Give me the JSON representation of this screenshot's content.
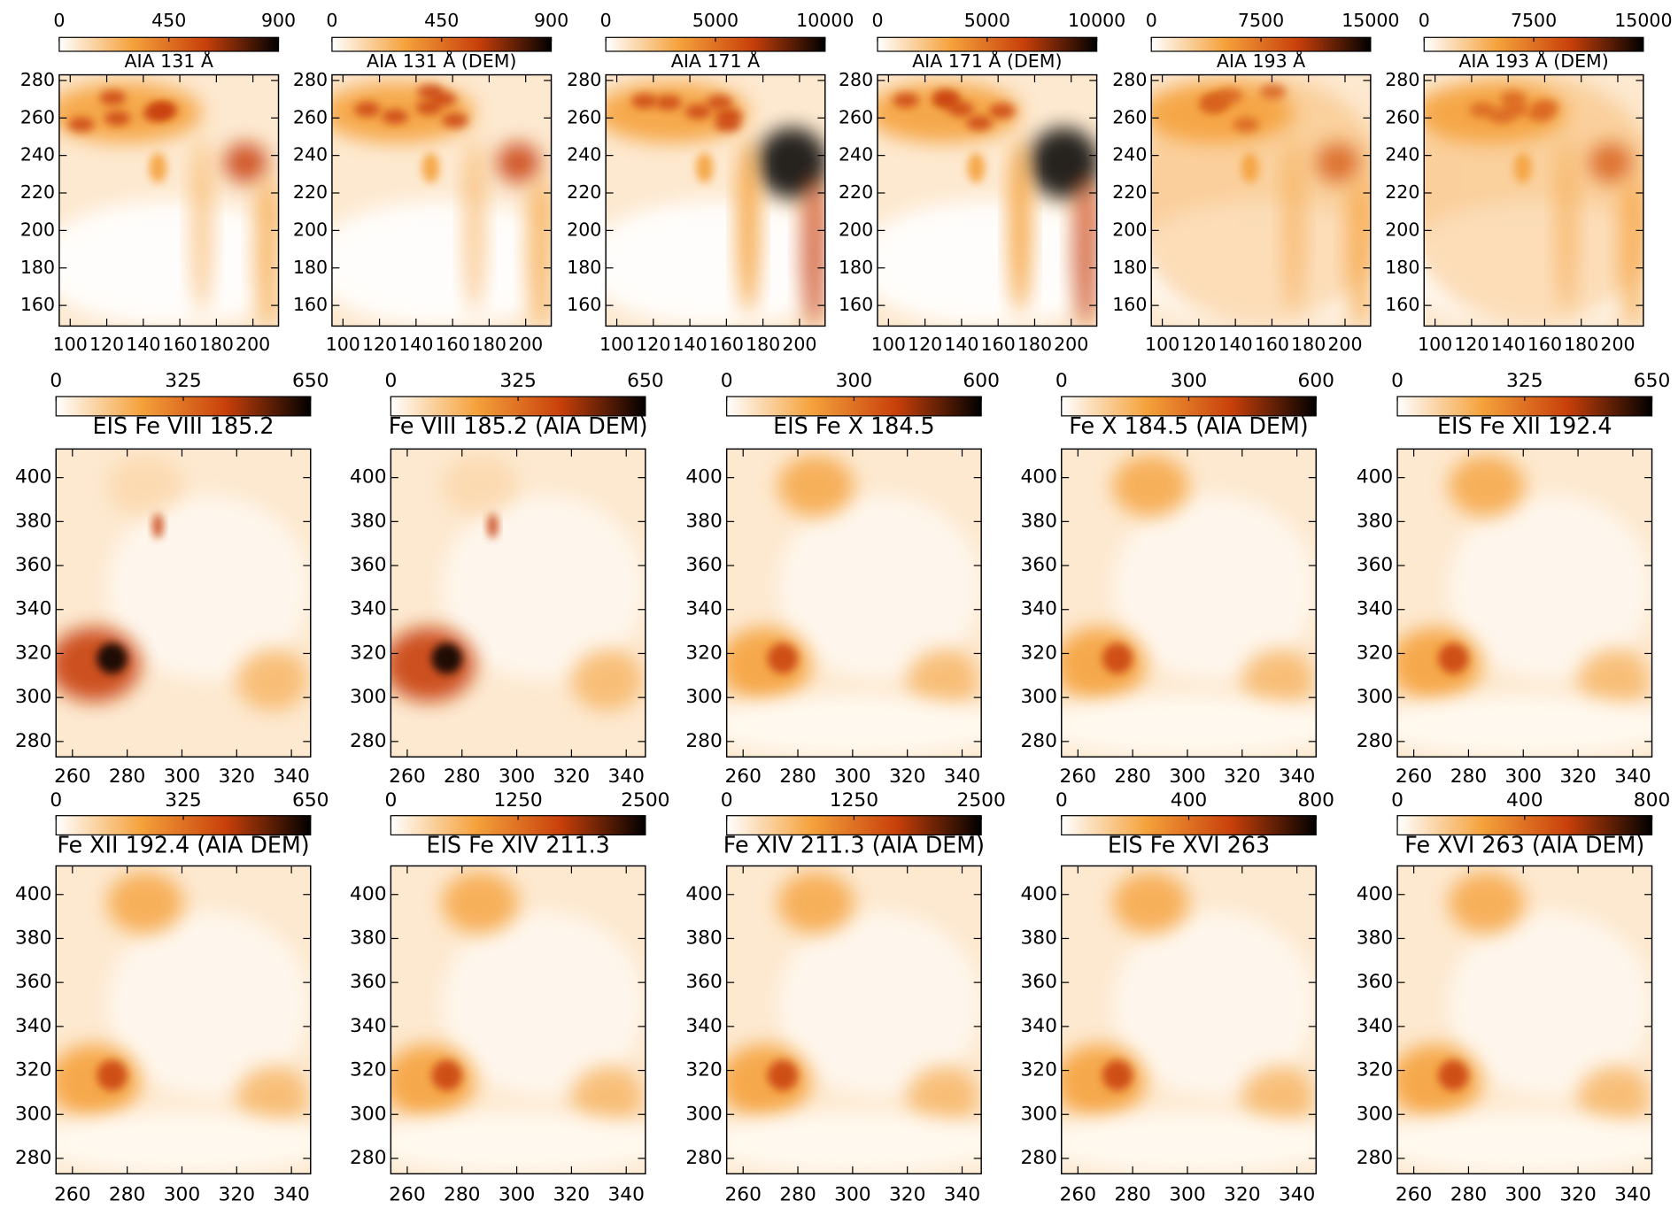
{
  "chart_data": [
    {
      "type": "image",
      "title": "AIA 131 Å",
      "colormap": [
        "#ffffff",
        "#f5a23c",
        "#c8400a",
        "#000000"
      ],
      "colorbar_lim": [
        0,
        900
      ],
      "colorbar_ticks": [
        0,
        450,
        900
      ],
      "xlim": [
        94,
        214
      ],
      "xticks": [
        100,
        120,
        140,
        160,
        180,
        200
      ],
      "ylim": [
        149,
        283
      ],
      "yticks": [
        160,
        180,
        200,
        220,
        240,
        260,
        280
      ]
    },
    {
      "type": "image",
      "title": "AIA 131 Å (DEM)",
      "colormap": [
        "#ffffff",
        "#f5a23c",
        "#c8400a",
        "#000000"
      ],
      "colorbar_lim": [
        0,
        900
      ],
      "colorbar_ticks": [
        0,
        450,
        900
      ],
      "xlim": [
        94,
        214
      ],
      "xticks": [
        100,
        120,
        140,
        160,
        180,
        200
      ],
      "ylim": [
        149,
        283
      ],
      "yticks": [
        160,
        180,
        200,
        220,
        240,
        260,
        280
      ]
    },
    {
      "type": "image",
      "title": "AIA 171 Å",
      "colormap": [
        "#ffffff",
        "#f5a23c",
        "#c8400a",
        "#000000"
      ],
      "colorbar_lim": [
        0,
        10000
      ],
      "colorbar_ticks": [
        0,
        5000,
        10000
      ],
      "xlim": [
        94,
        214
      ],
      "xticks": [
        100,
        120,
        140,
        160,
        180,
        200
      ],
      "ylim": [
        149,
        283
      ],
      "yticks": [
        160,
        180,
        200,
        220,
        240,
        260,
        280
      ]
    },
    {
      "type": "image",
      "title": "AIA 171 Å (DEM)",
      "colormap": [
        "#ffffff",
        "#f5a23c",
        "#c8400a",
        "#000000"
      ],
      "colorbar_lim": [
        0,
        10000
      ],
      "colorbar_ticks": [
        0,
        5000,
        10000
      ],
      "xlim": [
        94,
        214
      ],
      "xticks": [
        100,
        120,
        140,
        160,
        180,
        200
      ],
      "ylim": [
        149,
        283
      ],
      "yticks": [
        160,
        180,
        200,
        220,
        240,
        260,
        280
      ]
    },
    {
      "type": "image",
      "title": "AIA 193 Å",
      "colormap": [
        "#ffffff",
        "#f5a23c",
        "#c8400a",
        "#000000"
      ],
      "colorbar_lim": [
        0,
        15000
      ],
      "colorbar_ticks": [
        0,
        7500,
        15000
      ],
      "xlim": [
        94,
        214
      ],
      "xticks": [
        100,
        120,
        140,
        160,
        180,
        200
      ],
      "ylim": [
        149,
        283
      ],
      "yticks": [
        160,
        180,
        200,
        220,
        240,
        260,
        280
      ]
    },
    {
      "type": "image",
      "title": "AIA 193 Å (DEM)",
      "colormap": [
        "#ffffff",
        "#f5a23c",
        "#c8400a",
        "#000000"
      ],
      "colorbar_lim": [
        0,
        15000
      ],
      "colorbar_ticks": [
        0,
        7500,
        15000
      ],
      "xlim": [
        94,
        214
      ],
      "xticks": [
        100,
        120,
        140,
        160,
        180,
        200
      ],
      "ylim": [
        149,
        283
      ],
      "yticks": [
        160,
        180,
        200,
        220,
        240,
        260,
        280
      ]
    },
    {
      "type": "image",
      "title": "EIS Fe VIII 185.2",
      "colormap": [
        "#ffffff",
        "#f5a23c",
        "#c8400a",
        "#000000"
      ],
      "colorbar_lim": [
        0,
        650
      ],
      "colorbar_ticks": [
        0,
        325,
        650
      ],
      "xlim": [
        254,
        347
      ],
      "xticks": [
        260,
        280,
        300,
        320,
        340
      ],
      "ylim": [
        273,
        413
      ],
      "yticks": [
        280,
        300,
        320,
        340,
        360,
        380,
        400
      ]
    },
    {
      "type": "image",
      "title": "Fe VIII 185.2 (AIA DEM)",
      "colormap": [
        "#ffffff",
        "#f5a23c",
        "#c8400a",
        "#000000"
      ],
      "colorbar_lim": [
        0,
        650
      ],
      "colorbar_ticks": [
        0,
        325,
        650
      ],
      "xlim": [
        254,
        347
      ],
      "xticks": [
        260,
        280,
        300,
        320,
        340
      ],
      "ylim": [
        273,
        413
      ],
      "yticks": [
        280,
        300,
        320,
        340,
        360,
        380,
        400
      ]
    },
    {
      "type": "image",
      "title": "EIS Fe X 184.5",
      "colormap": [
        "#ffffff",
        "#f5a23c",
        "#c8400a",
        "#000000"
      ],
      "colorbar_lim": [
        0,
        600
      ],
      "colorbar_ticks": [
        0,
        300,
        600
      ],
      "xlim": [
        254,
        347
      ],
      "xticks": [
        260,
        280,
        300,
        320,
        340
      ],
      "ylim": [
        273,
        413
      ],
      "yticks": [
        280,
        300,
        320,
        340,
        360,
        380,
        400
      ]
    },
    {
      "type": "image",
      "title": "Fe X 184.5 (AIA DEM)",
      "colormap": [
        "#ffffff",
        "#f5a23c",
        "#c8400a",
        "#000000"
      ],
      "colorbar_lim": [
        0,
        600
      ],
      "colorbar_ticks": [
        0,
        300,
        600
      ],
      "xlim": [
        254,
        347
      ],
      "xticks": [
        260,
        280,
        300,
        320,
        340
      ],
      "ylim": [
        273,
        413
      ],
      "yticks": [
        280,
        300,
        320,
        340,
        360,
        380,
        400
      ]
    },
    {
      "type": "image",
      "title": "EIS Fe XII 192.4",
      "colormap": [
        "#ffffff",
        "#f5a23c",
        "#c8400a",
        "#000000"
      ],
      "colorbar_lim": [
        0,
        650
      ],
      "colorbar_ticks": [
        0,
        325,
        650
      ],
      "xlim": [
        254,
        347
      ],
      "xticks": [
        260,
        280,
        300,
        320,
        340
      ],
      "ylim": [
        273,
        413
      ],
      "yticks": [
        280,
        300,
        320,
        340,
        360,
        380,
        400
      ]
    },
    {
      "type": "image",
      "title": "Fe XII 192.4 (AIA DEM)",
      "colormap": [
        "#ffffff",
        "#f5a23c",
        "#c8400a",
        "#000000"
      ],
      "colorbar_lim": [
        0,
        650
      ],
      "colorbar_ticks": [
        0,
        325,
        650
      ],
      "xlim": [
        254,
        347
      ],
      "xticks": [
        260,
        280,
        300,
        320,
        340
      ],
      "ylim": [
        273,
        413
      ],
      "yticks": [
        280,
        300,
        320,
        340,
        360,
        380,
        400
      ]
    },
    {
      "type": "image",
      "title": "EIS Fe XIV 211.3",
      "colormap": [
        "#ffffff",
        "#f5a23c",
        "#c8400a",
        "#000000"
      ],
      "colorbar_lim": [
        0,
        2500
      ],
      "colorbar_ticks": [
        0,
        1250,
        2500
      ],
      "xlim": [
        254,
        347
      ],
      "xticks": [
        260,
        280,
        300,
        320,
        340
      ],
      "ylim": [
        273,
        413
      ],
      "yticks": [
        280,
        300,
        320,
        340,
        360,
        380,
        400
      ]
    },
    {
      "type": "image",
      "title": "Fe XIV 211.3 (AIA DEM)",
      "colormap": [
        "#ffffff",
        "#f5a23c",
        "#c8400a",
        "#000000"
      ],
      "colorbar_lim": [
        0,
        2500
      ],
      "colorbar_ticks": [
        0,
        1250,
        2500
      ],
      "xlim": [
        254,
        347
      ],
      "xticks": [
        260,
        280,
        300,
        320,
        340
      ],
      "ylim": [
        273,
        413
      ],
      "yticks": [
        280,
        300,
        320,
        340,
        360,
        380,
        400
      ]
    },
    {
      "type": "image",
      "title": "EIS Fe XVI 263",
      "colormap": [
        "#ffffff",
        "#f5a23c",
        "#c8400a",
        "#000000"
      ],
      "colorbar_lim": [
        0,
        800
      ],
      "colorbar_ticks": [
        0,
        400,
        800
      ],
      "xlim": [
        254,
        347
      ],
      "xticks": [
        260,
        280,
        300,
        320,
        340
      ],
      "ylim": [
        273,
        413
      ],
      "yticks": [
        280,
        300,
        320,
        340,
        360,
        380,
        400
      ]
    },
    {
      "type": "image",
      "title": "Fe XVI 263 (AIA DEM)",
      "colormap": [
        "#ffffff",
        "#f5a23c",
        "#c8400a",
        "#000000"
      ],
      "colorbar_lim": [
        0,
        800
      ],
      "colorbar_ticks": [
        0,
        400,
        800
      ],
      "xlim": [
        254,
        347
      ],
      "xticks": [
        260,
        280,
        300,
        320,
        340
      ],
      "ylim": [
        273,
        413
      ],
      "yticks": [
        280,
        300,
        320,
        340,
        360,
        380,
        400
      ]
    }
  ]
}
